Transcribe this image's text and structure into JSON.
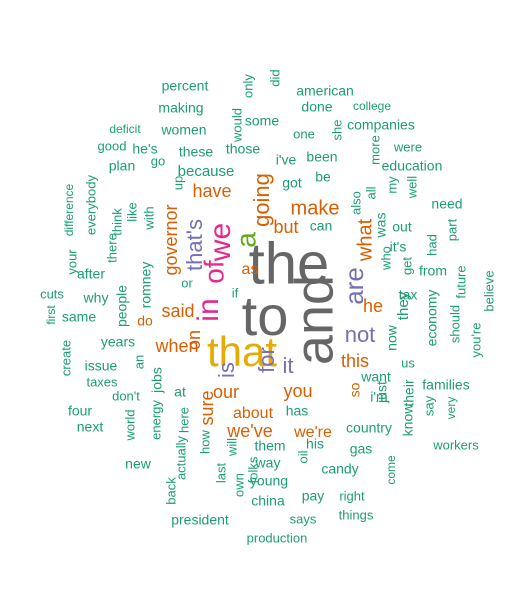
{
  "palette": {
    "teal": "#1b9e77",
    "orange": "#d95f02",
    "purple": "#7570b3",
    "magenta": "#e7298a",
    "green": "#66a61e",
    "gold": "#e6ab02",
    "gray": "#666666"
  },
  "words": [
    {
      "text": "the",
      "color": "gray"
    },
    {
      "text": "to",
      "color": "gray"
    },
    {
      "text": "and",
      "color": "gray"
    },
    {
      "text": "that",
      "color": "gold"
    },
    {
      "text": "a",
      "color": "green"
    },
    {
      "text": "we",
      "color": "magenta"
    },
    {
      "text": "of",
      "color": "magenta"
    },
    {
      "text": "in",
      "color": "magenta"
    },
    {
      "text": "is",
      "color": "purple"
    },
    {
      "text": "for",
      "color": "purple"
    },
    {
      "text": "are",
      "color": "purple"
    },
    {
      "text": "it",
      "color": "purple"
    },
    {
      "text": "not",
      "color": "purple"
    },
    {
      "text": "that's",
      "color": "purple"
    },
    {
      "text": "governor",
      "color": "orange"
    },
    {
      "text": "going",
      "color": "orange"
    },
    {
      "text": "have",
      "color": "orange"
    },
    {
      "text": "make",
      "color": "orange"
    },
    {
      "text": "but",
      "color": "orange"
    },
    {
      "text": "what",
      "color": "orange"
    },
    {
      "text": "when",
      "color": "orange"
    },
    {
      "text": "said",
      "color": "orange"
    },
    {
      "text": "on",
      "color": "orange"
    },
    {
      "text": "our",
      "color": "orange"
    },
    {
      "text": "you",
      "color": "orange"
    },
    {
      "text": "sure",
      "color": "orange"
    },
    {
      "text": "we've",
      "color": "orange"
    },
    {
      "text": "we're",
      "color": "orange"
    },
    {
      "text": "this",
      "color": "orange"
    },
    {
      "text": "he",
      "color": "orange"
    },
    {
      "text": "about",
      "color": "orange"
    },
    {
      "text": "as",
      "color": "orange"
    },
    {
      "text": "so",
      "color": "orange"
    },
    {
      "text": "do",
      "color": "orange"
    },
    {
      "text": "percent",
      "color": "teal"
    },
    {
      "text": "american",
      "color": "teal"
    },
    {
      "text": "did",
      "color": "teal"
    },
    {
      "text": "only",
      "color": "teal"
    },
    {
      "text": "would",
      "color": "teal"
    },
    {
      "text": "making",
      "color": "teal"
    },
    {
      "text": "done",
      "color": "teal"
    },
    {
      "text": "college",
      "color": "teal"
    },
    {
      "text": "deficit",
      "color": "teal"
    },
    {
      "text": "women",
      "color": "teal"
    },
    {
      "text": "some",
      "color": "teal"
    },
    {
      "text": "she",
      "color": "teal"
    },
    {
      "text": "companies",
      "color": "teal"
    },
    {
      "text": "good",
      "color": "teal"
    },
    {
      "text": "he's",
      "color": "teal"
    },
    {
      "text": "these",
      "color": "teal"
    },
    {
      "text": "those",
      "color": "teal"
    },
    {
      "text": "one",
      "color": "teal"
    },
    {
      "text": "were",
      "color": "teal"
    },
    {
      "text": "plan",
      "color": "teal"
    },
    {
      "text": "go",
      "color": "teal"
    },
    {
      "text": "because",
      "color": "teal"
    },
    {
      "text": "i've",
      "color": "teal"
    },
    {
      "text": "been",
      "color": "teal"
    },
    {
      "text": "more",
      "color": "teal"
    },
    {
      "text": "education",
      "color": "teal"
    },
    {
      "text": "difference",
      "color": "teal"
    },
    {
      "text": "everybody",
      "color": "teal"
    },
    {
      "text": "think",
      "color": "teal"
    },
    {
      "text": "like",
      "color": "teal"
    },
    {
      "text": "with",
      "color": "teal"
    },
    {
      "text": "up",
      "color": "teal"
    },
    {
      "text": "got",
      "color": "teal"
    },
    {
      "text": "be",
      "color": "teal"
    },
    {
      "text": "also",
      "color": "teal"
    },
    {
      "text": "all",
      "color": "teal"
    },
    {
      "text": "my",
      "color": "teal"
    },
    {
      "text": "well",
      "color": "teal"
    },
    {
      "text": "there",
      "color": "teal"
    },
    {
      "text": "can",
      "color": "teal"
    },
    {
      "text": "was",
      "color": "teal"
    },
    {
      "text": "need",
      "color": "teal"
    },
    {
      "text": "your",
      "color": "teal"
    },
    {
      "text": "out",
      "color": "teal"
    },
    {
      "text": "it's",
      "color": "teal"
    },
    {
      "text": "had",
      "color": "teal"
    },
    {
      "text": "part",
      "color": "teal"
    },
    {
      "text": "after",
      "color": "teal"
    },
    {
      "text": "romney",
      "color": "teal"
    },
    {
      "text": "who",
      "color": "teal"
    },
    {
      "text": "get",
      "color": "teal"
    },
    {
      "text": "from",
      "color": "teal"
    },
    {
      "text": "future",
      "color": "teal"
    },
    {
      "text": "cuts",
      "color": "teal"
    },
    {
      "text": "why",
      "color": "teal"
    },
    {
      "text": "or",
      "color": "teal"
    },
    {
      "text": "if",
      "color": "teal"
    },
    {
      "text": "they",
      "color": "teal"
    },
    {
      "text": "tax",
      "color": "teal"
    },
    {
      "text": "believe",
      "color": "teal"
    },
    {
      "text": "same",
      "color": "teal"
    },
    {
      "text": "people",
      "color": "teal"
    },
    {
      "text": "first",
      "color": "teal"
    },
    {
      "text": "years",
      "color": "teal"
    },
    {
      "text": "now",
      "color": "teal"
    },
    {
      "text": "economy",
      "color": "teal"
    },
    {
      "text": "should",
      "color": "teal"
    },
    {
      "text": "you're",
      "color": "teal"
    },
    {
      "text": "create",
      "color": "teal"
    },
    {
      "text": "issue",
      "color": "teal"
    },
    {
      "text": "an",
      "color": "teal"
    },
    {
      "text": "want",
      "color": "teal"
    },
    {
      "text": "us",
      "color": "teal"
    },
    {
      "text": "taxes",
      "color": "teal"
    },
    {
      "text": "jobs",
      "color": "teal"
    },
    {
      "text": "just",
      "color": "teal"
    },
    {
      "text": "their",
      "color": "teal"
    },
    {
      "text": "families",
      "color": "teal"
    },
    {
      "text": "at",
      "color": "teal"
    },
    {
      "text": "i'm",
      "color": "teal"
    },
    {
      "text": "four",
      "color": "teal"
    },
    {
      "text": "don't",
      "color": "teal"
    },
    {
      "text": "energy",
      "color": "teal"
    },
    {
      "text": "here",
      "color": "teal"
    },
    {
      "text": "has",
      "color": "teal"
    },
    {
      "text": "know",
      "color": "teal"
    },
    {
      "text": "say",
      "color": "teal"
    },
    {
      "text": "very",
      "color": "teal"
    },
    {
      "text": "next",
      "color": "teal"
    },
    {
      "text": "world",
      "color": "teal"
    },
    {
      "text": "country",
      "color": "teal"
    },
    {
      "text": "his",
      "color": "teal"
    },
    {
      "text": "them",
      "color": "teal"
    },
    {
      "text": "gas",
      "color": "teal"
    },
    {
      "text": "workers",
      "color": "teal"
    },
    {
      "text": "new",
      "color": "teal"
    },
    {
      "text": "actually",
      "color": "teal"
    },
    {
      "text": "how",
      "color": "teal"
    },
    {
      "text": "will",
      "color": "teal"
    },
    {
      "text": "way",
      "color": "teal"
    },
    {
      "text": "oil",
      "color": "teal"
    },
    {
      "text": "candy",
      "color": "teal"
    },
    {
      "text": "come",
      "color": "teal"
    },
    {
      "text": "back",
      "color": "teal"
    },
    {
      "text": "last",
      "color": "teal"
    },
    {
      "text": "own",
      "color": "teal"
    },
    {
      "text": "folks",
      "color": "teal"
    },
    {
      "text": "young",
      "color": "teal"
    },
    {
      "text": "pay",
      "color": "teal"
    },
    {
      "text": "right",
      "color": "teal"
    },
    {
      "text": "china",
      "color": "teal"
    },
    {
      "text": "president",
      "color": "teal"
    },
    {
      "text": "says",
      "color": "teal"
    },
    {
      "text": "things",
      "color": "teal"
    },
    {
      "text": "production",
      "color": "teal"
    }
  ]
}
